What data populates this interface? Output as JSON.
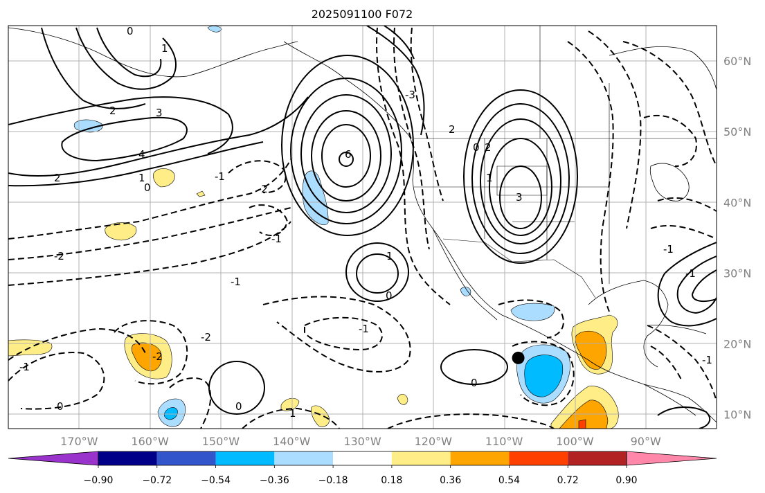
{
  "title": "2025091100 F072",
  "map": {
    "lon_range": [
      -180,
      -80
    ],
    "lat_range": [
      8,
      65
    ],
    "projection": "plate carree",
    "gridlines": true,
    "lon_ticks": [
      {
        "value": -170,
        "label": "170°W"
      },
      {
        "value": -160,
        "label": "160°W"
      },
      {
        "value": -150,
        "label": "150°W"
      },
      {
        "value": -140,
        "label": "140°W"
      },
      {
        "value": -130,
        "label": "130°W"
      },
      {
        "value": -120,
        "label": "120°W"
      },
      {
        "value": -110,
        "label": "110°W"
      },
      {
        "value": -100,
        "label": "100°W"
      },
      {
        "value": -90,
        "label": "90°W"
      }
    ],
    "lat_ticks": [
      {
        "value": 60,
        "label": "60°N"
      },
      {
        "value": 50,
        "label": "50°N"
      },
      {
        "value": 40,
        "label": "40°N"
      },
      {
        "value": 30,
        "label": "30°N"
      },
      {
        "value": 20,
        "label": "20°N"
      },
      {
        "value": 10,
        "label": "10°N"
      }
    ],
    "marker": {
      "lon": -108,
      "lat": 18,
      "color": "#000000"
    }
  },
  "colorbar": {
    "colors": [
      "#9933cc",
      "#000088",
      "#3355cc",
      "#00bbff",
      "#aaddff",
      "#ffffff",
      "#ffee88",
      "#ffa500",
      "#ff4000",
      "#b22222",
      "#ff88aa"
    ],
    "boundaries": [
      {
        "value": -0.9,
        "label": "−0.90"
      },
      {
        "value": -0.72,
        "label": "−0.72"
      },
      {
        "value": -0.54,
        "label": "−0.54"
      },
      {
        "value": -0.36,
        "label": "−0.36"
      },
      {
        "value": -0.18,
        "label": "−0.18"
      },
      {
        "value": 0.18,
        "label": "0.18"
      },
      {
        "value": 0.36,
        "label": "0.36"
      },
      {
        "value": 0.54,
        "label": "0.54"
      },
      {
        "value": 0.72,
        "label": "0.72"
      },
      {
        "value": 0.9,
        "label": "0.90"
      }
    ]
  },
  "contour_labels": [
    "0",
    "1",
    "2",
    "3",
    "4",
    "6",
    "2",
    "1",
    "0",
    "-1",
    "-2",
    "-1",
    "-2",
    "-3",
    "1",
    "0",
    "-1",
    "-1",
    "-1",
    "-2",
    "0",
    "1",
    "0",
    "3",
    "2",
    "1",
    "0",
    "2",
    "-2",
    "-1",
    "-1",
    "0",
    "-1"
  ],
  "chart_data": {
    "type": "heatmap",
    "title": "2025091100 F072",
    "xlabel": "",
    "ylabel": "",
    "x_range": [
      -180,
      -80
    ],
    "y_range": [
      8,
      65
    ],
    "grid": true,
    "legend": "colorbar bottom",
    "colorbar_levels": [
      -0.9,
      -0.72,
      -0.54,
      -0.36,
      -0.18,
      0.18,
      0.36,
      0.54,
      0.72,
      0.9
    ],
    "shaded_regions": [
      {
        "name": "blue",
        "lon": -107,
        "lat": 16,
        "max_level": -0.54
      },
      {
        "name": "blue",
        "lon": -157,
        "lat": 10,
        "max_level": -0.54
      },
      {
        "name": "blue",
        "lon": -137,
        "lat": 41,
        "max_level": -0.36
      },
      {
        "name": "blue",
        "lon": -166,
        "lat": 51,
        "max_level": -0.36
      },
      {
        "name": "blue",
        "lon": -110,
        "lat": 24.5,
        "max_level": -0.36
      },
      {
        "name": "orange",
        "lon": -98,
        "lat": 21,
        "max_level": 0.54
      },
      {
        "name": "orange",
        "lon": -100,
        "lat": 9,
        "max_level": 0.72
      },
      {
        "name": "orange",
        "lon": -160,
        "lat": 19,
        "max_level": 0.54
      },
      {
        "name": "yellow",
        "lon": -176,
        "lat": 19.5,
        "max_level": 0.36
      },
      {
        "name": "yellow",
        "lon": -164,
        "lat": 34,
        "max_level": 0.36
      },
      {
        "name": "yellow",
        "lon": -160,
        "lat": 44,
        "max_level": 0.36
      },
      {
        "name": "yellow",
        "lon": -140,
        "lat": 9.5,
        "max_level": 0.36
      },
      {
        "name": "yellow",
        "lon": -122,
        "lat": 12,
        "max_level": 0.36
      }
    ]
  }
}
